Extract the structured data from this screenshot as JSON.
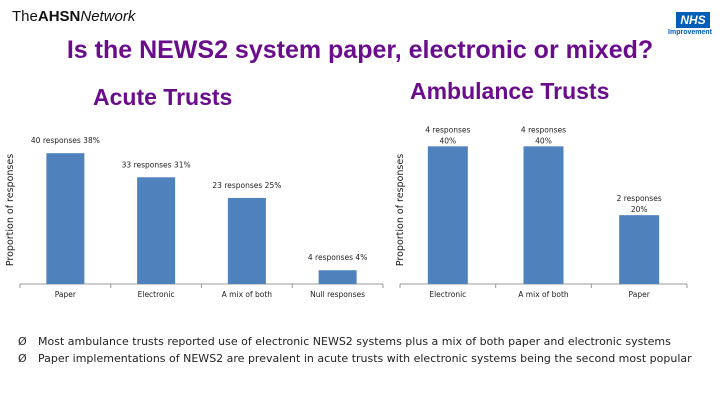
{
  "header": {
    "ahsn_logo": {
      "part1": "The",
      "part2": "AHSN",
      "part3": "Network"
    },
    "nhs_logo": {
      "badge": "NHS",
      "sub": "Improvement"
    }
  },
  "title": "Is the NEWS2 system paper, electronic or mixed?",
  "subtitles": {
    "acute": "Acute Trusts",
    "ambulance": "Ambulance Trusts"
  },
  "chart_data": [
    {
      "type": "bar",
      "ylabel": "Proportion of responses",
      "categories": [
        "Paper",
        "Electronic",
        "A mix of both",
        "Null responses"
      ],
      "values": [
        38,
        31,
        25,
        4
      ],
      "data_labels": [
        "40 responses 38%",
        "33 responses 31%",
        "23 responses 25%",
        "4 responses 4%"
      ],
      "ylim": [
        0,
        43
      ],
      "grid": false,
      "color": "#4f81bd"
    },
    {
      "type": "bar",
      "ylabel": "Proportion of responses",
      "categories": [
        "Electronic",
        "A mix of both",
        "Paper"
      ],
      "values": [
        40,
        40,
        20
      ],
      "data_labels": [
        [
          "4 responses",
          "40%"
        ],
        [
          "4 responses",
          "40%"
        ],
        [
          "2 responses",
          "20%"
        ]
      ],
      "ylim": [
        0,
        43
      ],
      "grid": false,
      "color": "#4f81bd"
    }
  ],
  "bullets": [
    "Most ambulance trusts reported use of electronic NEWS2 systems plus a mix of both paper and electronic systems",
    "Paper implementations of NEWS2 are prevalent in acute trusts with electronic systems being the second most popular"
  ],
  "bullet_glyph": "Ø"
}
